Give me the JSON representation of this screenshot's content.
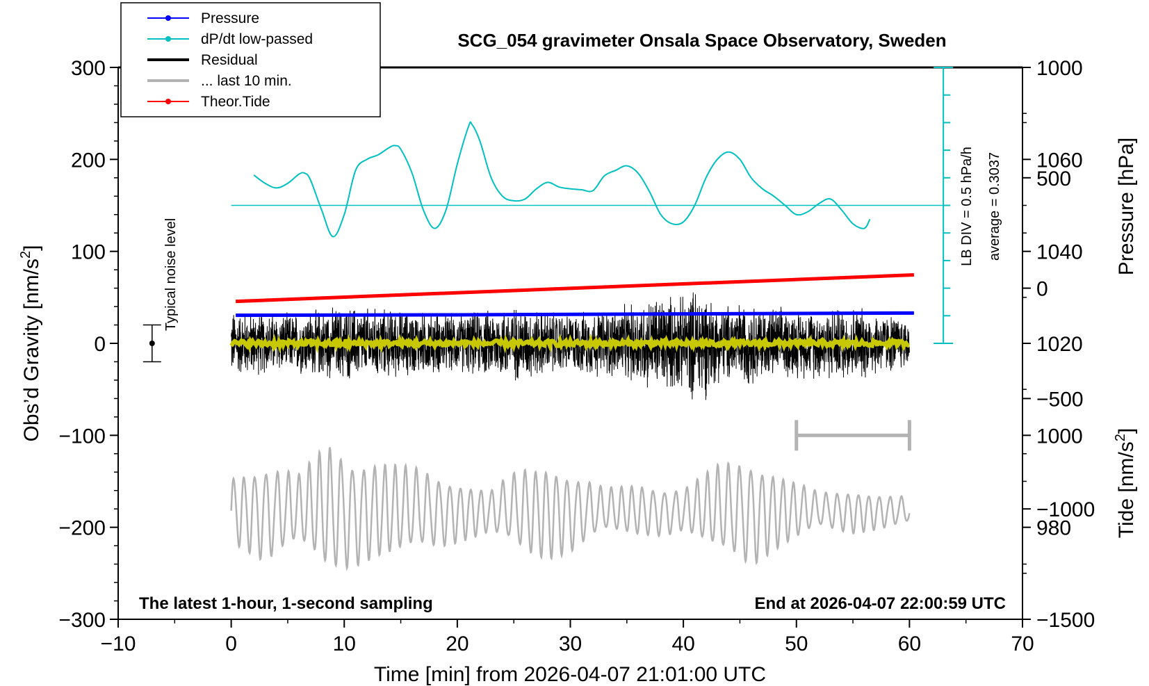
{
  "chart_data": {
    "type": "line",
    "title": "SCG_054 gravimeter Onsala Space Observatory, Sweden",
    "xlabel": "Time [min] from 2026-04-07 21:01:00 UTC",
    "xlim": [
      -10,
      70
    ],
    "xticks": [
      -10,
      0,
      10,
      20,
      30,
      40,
      50,
      60,
      70
    ],
    "y_left": {
      "label_prefix": "Obs’d Gravity [nm/s",
      "label_sup": "2",
      "label_suffix": "]",
      "range": [
        -300,
        300
      ],
      "ticks": [
        300,
        200,
        100,
        0,
        -100,
        -200,
        -300
      ],
      "tick_labels": [
        "300",
        "200",
        "100",
        "0",
        "−100",
        "−200",
        "−300"
      ]
    },
    "y_right_pressure": {
      "label": "Pressure [hPa]",
      "range": [
        960,
        1080
      ],
      "ticks": [
        1060,
        1040,
        1020,
        1000,
        980
      ],
      "tick_labels": [
        "1060",
        "1040",
        "1020",
        "1000",
        "980"
      ]
    },
    "y_right_tide": {
      "label_prefix": "Tide [nm/s",
      "label_sup": "2",
      "label_suffix": "]",
      "range": [
        -1500,
        1000
      ],
      "ticks": [
        1000,
        500,
        0,
        -500,
        -1000,
        -1500
      ],
      "tick_labels": [
        "1000",
        "500",
        "0",
        "−500",
        "−1000",
        "−1500"
      ]
    },
    "legend": {
      "position": "top-left",
      "entries": [
        {
          "label": "Pressure",
          "color": "#0000ff",
          "marker": true
        },
        {
          "label": "dP/dt low-passed",
          "color": "#00c0c0",
          "marker": true
        },
        {
          "label": "Residual",
          "color": "#000000",
          "marker": false
        },
        {
          "label": "... last 10 min.",
          "color": "#b3b3b3",
          "marker": false
        },
        {
          "label": "Theor.Tide",
          "color": "#ff0000",
          "marker": true
        }
      ]
    },
    "noise_bar": {
      "label": "Typical noise level",
      "x": -7,
      "y": 0,
      "half_range": 20
    },
    "dpdt_scale": {
      "label": "LB DIV = 0.5 hPa/h",
      "average_label": "average = 0.3037",
      "x": 63,
      "y_range": [
        0,
        300
      ],
      "baseline": 150
    },
    "series": [
      {
        "name": "Pressure",
        "axis": "pressure_hPa",
        "color": "#0000ff",
        "x": [
          0.4,
          20,
          40,
          60.4
        ],
        "y": [
          1026.1,
          1026.2,
          1026.4,
          1026.6
        ]
      },
      {
        "name": "dP/dt low-passed",
        "axis": "left",
        "color": "#00c0c0",
        "baseline": 150,
        "x": [
          2.0,
          3.0,
          4.0,
          5.0,
          6.0,
          6.5,
          7.0,
          8.0,
          9.0,
          10.0,
          11.0,
          12.0,
          13.0,
          14.0,
          14.5,
          15.0,
          16.0,
          17.0,
          18.0,
          19.0,
          20.0,
          21.0,
          21.3,
          22.0,
          23.0,
          24.0,
          25.0,
          26.0,
          27.0,
          28.0,
          29.0,
          30.0,
          31.0,
          32.0,
          33.0,
          34.0,
          35.0,
          36.0,
          37.0,
          38.0,
          39.0,
          40.0,
          41.0,
          42.0,
          43.0,
          44.0,
          45.0,
          46.0,
          47.0,
          48.0,
          49.0,
          50.0,
          51.0,
          52.0,
          53.0,
          54.0,
          55.0,
          56.0,
          56.5
        ],
        "y": [
          183,
          174,
          169,
          174,
          184,
          185,
          178,
          145,
          116,
          140,
          188,
          200,
          205,
          213,
          215,
          211,
          185,
          145,
          125,
          145,
          195,
          236,
          238,
          220,
          180,
          160,
          155,
          157,
          168,
          175,
          170,
          168,
          167,
          166,
          182,
          188,
          193,
          185,
          165,
          140,
          130,
          132,
          150,
          180,
          200,
          208,
          200,
          180,
          168,
          160,
          150,
          140,
          143,
          152,
          157,
          145,
          130,
          125,
          135
        ]
      },
      {
        "name": "Residual",
        "axis": "left",
        "color": "#000000",
        "x_range": [
          0,
          60
        ],
        "envelope_x": [
          0,
          5,
          10,
          15,
          20,
          25,
          30,
          35,
          38,
          40,
          41.5,
          43,
          45,
          47,
          50,
          55,
          60
        ],
        "envelope_amp": [
          40,
          35,
          45,
          40,
          35,
          45,
          35,
          45,
          60,
          55,
          75,
          45,
          50,
          45,
          40,
          45,
          30
        ]
      },
      {
        "name": "Residual smoothed",
        "axis": "left",
        "color": "#c8c800",
        "x_range": [
          0,
          60
        ],
        "level": 0,
        "amplitude": 3
      },
      {
        "name": "... last 10 min.",
        "axis": "left",
        "color": "#b3b3b3",
        "x_range": [
          0,
          60
        ],
        "center": -182,
        "envelope_x": [
          0,
          3,
          6,
          8.5,
          11,
          14,
          17,
          20,
          23,
          26,
          28,
          30,
          33,
          36,
          40,
          43,
          46,
          49,
          52,
          55,
          60
        ],
        "envelope_amp": [
          40,
          55,
          40,
          75,
          60,
          55,
          45,
          35,
          25,
          50,
          55,
          45,
          25,
          30,
          25,
          50,
          60,
          40,
          20,
          25,
          15
        ]
      },
      {
        "name": "Theor.Tide",
        "axis": "tide",
        "color": "#ff0000",
        "x": [
          0.4,
          60.4
        ],
        "y": [
          -60,
          60
        ]
      }
    ],
    "scale_bar": {
      "x_start": 50,
      "x_end": 60,
      "y": -100,
      "color": "#b3b3b3"
    },
    "annotations": {
      "bottom_left": "The latest 1-hour, 1-second sampling",
      "bottom_right": "End at 2026-04-07 22:00:59 UTC"
    }
  }
}
